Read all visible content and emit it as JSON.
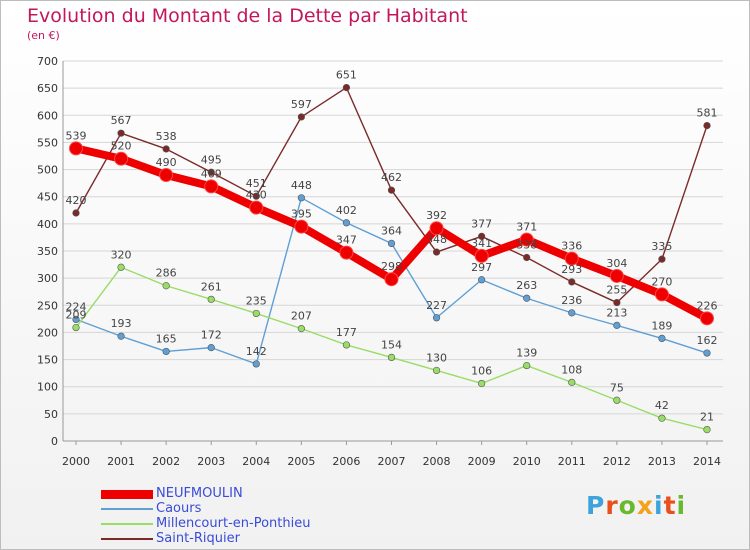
{
  "chart_data": {
    "type": "line",
    "title": "Evolution du Montant de la Dette par Habitant",
    "subtitle": "(en €)",
    "x": [
      "2000",
      "2001",
      "2002",
      "2003",
      "2004",
      "2005",
      "2006",
      "2007",
      "2008",
      "2009",
      "2010",
      "2011",
      "2012",
      "2013",
      "2014"
    ],
    "ylim": [
      0,
      700
    ],
    "yticks": [
      0,
      50,
      100,
      150,
      200,
      250,
      300,
      350,
      400,
      450,
      500,
      550,
      600,
      650,
      700
    ],
    "grid": true,
    "legend_position": "bottom-left",
    "series": [
      {
        "name": "NEUFMOULIN",
        "color": "#ee0000",
        "values": [
          539,
          520,
          490,
          469,
          430,
          395,
          347,
          298,
          392,
          341,
          371,
          336,
          304,
          270,
          226
        ]
      },
      {
        "name": "Caours",
        "color": "#5f9fd4",
        "values": [
          224,
          193,
          165,
          172,
          142,
          448,
          402,
          364,
          227,
          297,
          263,
          236,
          213,
          189,
          162
        ]
      },
      {
        "name": "Millencourt-en-Ponthieu",
        "color": "#99dd66",
        "values": [
          209,
          320,
          286,
          261,
          235,
          207,
          177,
          154,
          130,
          106,
          139,
          108,
          75,
          42,
          21
        ]
      },
      {
        "name": "Saint-Riquier",
        "color": "#7b2a2a",
        "values": [
          420,
          567,
          538,
          495,
          451,
          597,
          651,
          462,
          348,
          377,
          338,
          293,
          255,
          335,
          581
        ]
      }
    ]
  },
  "logo": {
    "letters": [
      "P",
      "r",
      "o",
      "x",
      "i",
      "t",
      "i"
    ],
    "colors": [
      "#3ea3dc",
      "#e94e1b",
      "#6ab82e",
      "#f4a11b",
      "#3ea3dc",
      "#e94e1b",
      "#6ab82e"
    ]
  }
}
